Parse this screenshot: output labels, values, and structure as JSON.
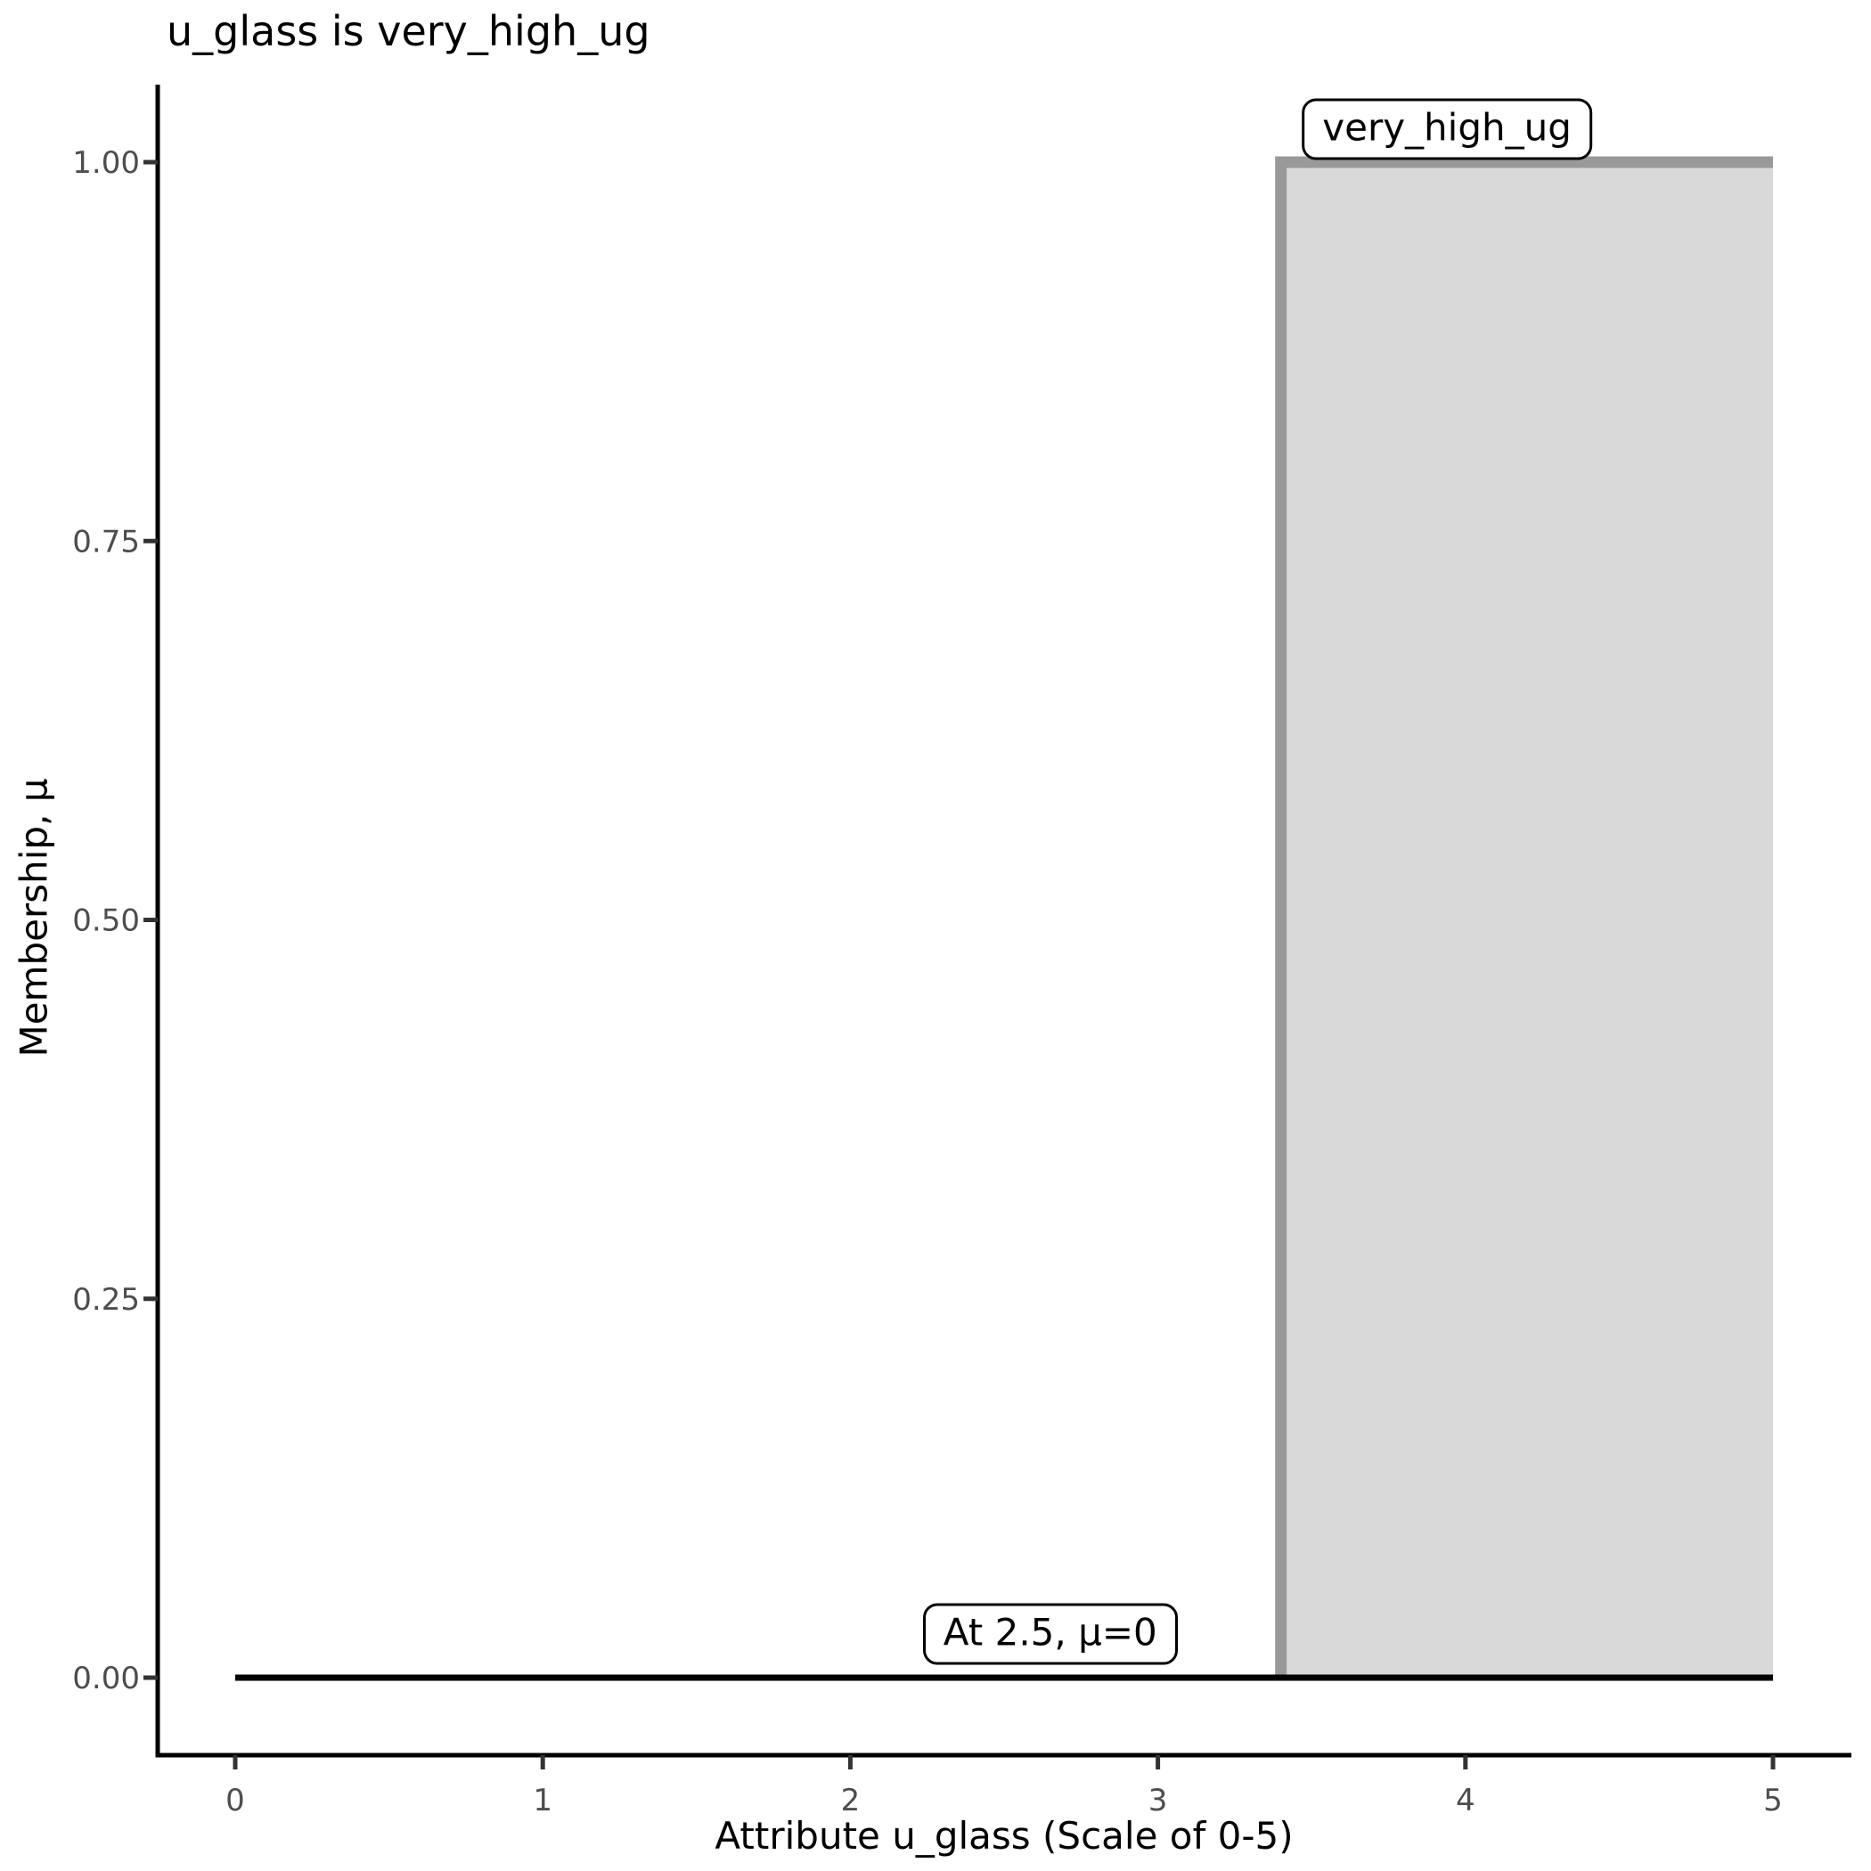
{
  "chart_data": {
    "type": "area",
    "title": "u_glass is very_high_ug",
    "xlabel": "Attribute u_glass (Scale of 0-5)",
    "ylabel": "Membership, μ",
    "xlim": [
      0,
      5
    ],
    "ylim": [
      0,
      1
    ],
    "x_ticks": [
      "0",
      "1",
      "2",
      "3",
      "4",
      "5"
    ],
    "x_tick_values": [
      0,
      1,
      2,
      3,
      4,
      5
    ],
    "y_ticks": [
      "0.00",
      "0.25",
      "0.50",
      "0.75",
      "1.00"
    ],
    "y_tick_values": [
      0,
      0.25,
      0.5,
      0.75,
      1
    ],
    "grid": false,
    "legend": false,
    "series": [
      {
        "name": "very_high_ug_fill",
        "kind": "area",
        "fill": "#D9D9D9",
        "points": [
          [
            3.4,
            0
          ],
          [
            3.4,
            1
          ],
          [
            5,
            1
          ],
          [
            5,
            0
          ]
        ]
      },
      {
        "name": "very_high_ug_curve",
        "kind": "line",
        "color": "#999999",
        "width": 13,
        "points": [
          [
            3.4,
            0
          ],
          [
            3.4,
            1
          ],
          [
            5,
            1
          ]
        ]
      },
      {
        "name": "membership_baseline",
        "kind": "line",
        "color": "#000000",
        "width": 7,
        "points": [
          [
            0,
            0
          ],
          [
            5,
            0
          ]
        ]
      }
    ],
    "annotations": [
      {
        "text": "very_high_ug",
        "x": 3.94,
        "y": 1.022
      },
      {
        "text": "At 2.5, μ=0",
        "x": 2.65,
        "y": 0.029
      }
    ],
    "colors": {
      "curve": "#999999",
      "area_fill": "#D9D9D9",
      "baseline": "#000000",
      "axis_line": "#000000",
      "tick_mark": "#333333",
      "tick_label": "#4D4D4D",
      "title_text": "#000000"
    }
  }
}
